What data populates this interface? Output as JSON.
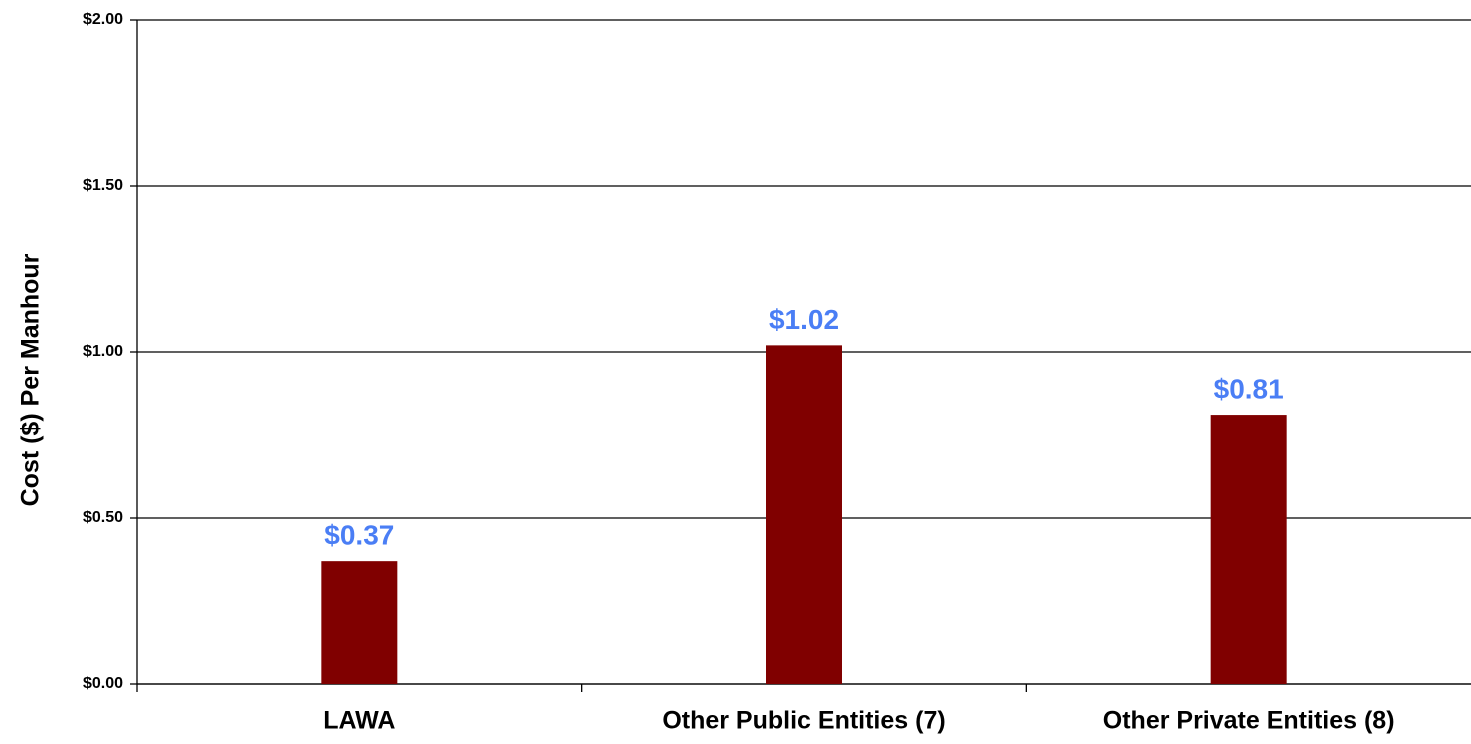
{
  "chart_data": {
    "type": "bar",
    "y_label": "Cost ($) Per Manhour",
    "categories": [
      "LAWA",
      "Other Public Entities (7)",
      "Other Private Entities (8)"
    ],
    "values": [
      0.37,
      1.02,
      0.81
    ],
    "value_labels": [
      "$0.37",
      "$1.02",
      "$0.81"
    ],
    "color": "#800000",
    "label_color": "#4a7ef5",
    "ylim": [
      0,
      2
    ],
    "yticks": [
      {
        "value": 0,
        "label": "$0.00"
      },
      {
        "value": 0.5,
        "label": "$0.50"
      },
      {
        "value": 1,
        "label": "$1.00"
      },
      {
        "value": 1.5,
        "label": "$1.50"
      },
      {
        "value": 2,
        "label": "$2.00"
      }
    ],
    "grid": true
  }
}
